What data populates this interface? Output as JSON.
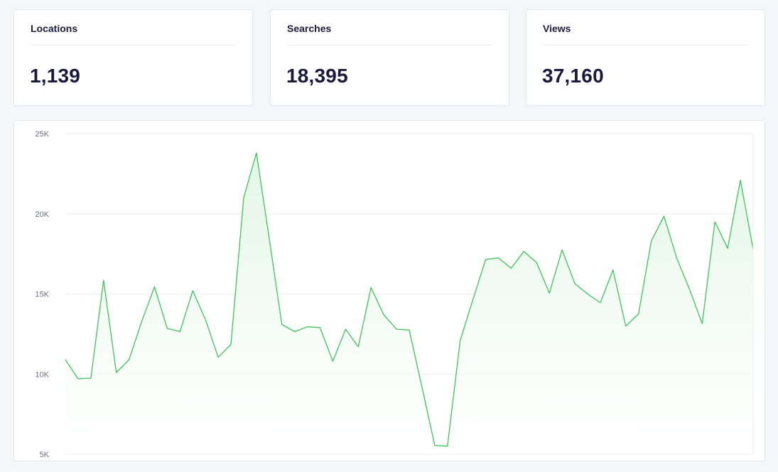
{
  "cards": [
    {
      "title": "Locations",
      "value": "1,139"
    },
    {
      "title": "Searches",
      "value": "18,395"
    },
    {
      "title": "Views",
      "value": "37,160"
    }
  ],
  "colors": {
    "line": "#3fc25a",
    "fill_top": "#dff5e2",
    "fill_bottom": "#ffffff",
    "grid": "#eceef2"
  },
  "chart_data": {
    "type": "area",
    "title": "",
    "xlabel": "",
    "ylabel": "",
    "ylim": [
      5000,
      25000
    ],
    "y_ticks": [
      {
        "value": 25000,
        "label": "25K"
      },
      {
        "value": 20000,
        "label": "20K"
      },
      {
        "value": 15000,
        "label": "15K"
      },
      {
        "value": 10000,
        "label": "10K"
      },
      {
        "value": 5000,
        "label": "5K"
      }
    ],
    "grid": true,
    "series": [
      {
        "values": [
          10900,
          9700,
          9750,
          15850,
          10100,
          10900,
          13300,
          15450,
          12850,
          12650,
          15200,
          13400,
          11050,
          11850,
          21000,
          23800,
          18500,
          13100,
          12650,
          12950,
          12900,
          10800,
          12800,
          11700,
          15400,
          13700,
          12800,
          12750,
          9200,
          5550,
          5500,
          12100,
          14650,
          17150,
          17250,
          16600,
          17650,
          16950,
          15050,
          17750,
          15650,
          15000,
          14450,
          16500,
          13000,
          13750,
          18300,
          19850,
          17250,
          15300,
          13150,
          19500,
          17850,
          22100,
          17800
        ]
      }
    ]
  }
}
